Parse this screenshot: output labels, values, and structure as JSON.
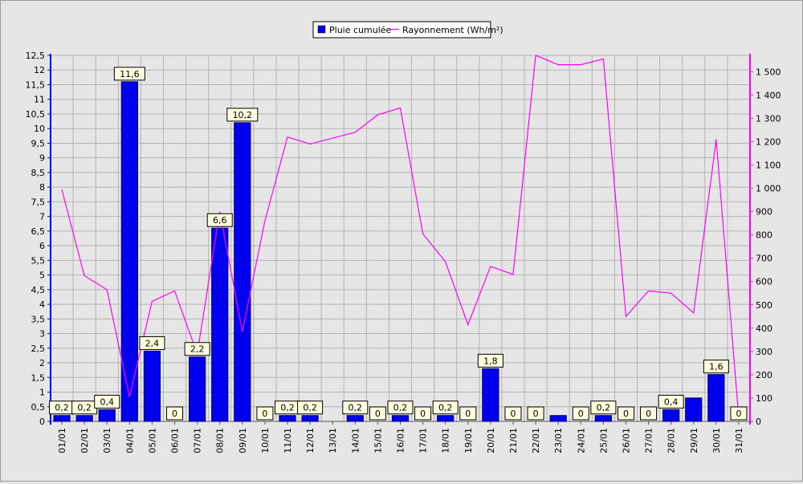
{
  "chart_data": {
    "type": "bar",
    "title": "",
    "categories": [
      "01/01",
      "02/01",
      "03/01",
      "04/01",
      "05/01",
      "06/01",
      "07/01",
      "08/01",
      "09/01",
      "10/01",
      "11/01",
      "12/01",
      "13/01",
      "14/01",
      "15/01",
      "16/01",
      "17/01",
      "18/01",
      "19/01",
      "20/01",
      "21/01",
      "22/01",
      "23/01",
      "24/01",
      "25/01",
      "26/01",
      "27/01",
      "28/01",
      "29/01",
      "30/01",
      "31/01"
    ],
    "series": [
      {
        "name": "Pluie cumulée",
        "type": "bar",
        "axis": "left",
        "color": "#0000ee",
        "values": [
          0.2,
          0.2,
          0.4,
          11.6,
          2.4,
          0,
          2.2,
          6.6,
          10.2,
          0,
          0.2,
          0.2,
          0,
          0.2,
          0,
          0.2,
          0,
          0.2,
          0,
          1.8,
          0,
          0,
          0.2,
          0,
          0.2,
          0,
          0,
          0.4,
          0.8,
          1.6,
          0
        ],
        "labels": [
          "0,2",
          "0,2",
          "0,4",
          "11,6",
          "2,4",
          "0",
          "2,2",
          "6,6",
          "10,2",
          "0",
          "0,2",
          "0,2",
          null,
          "0,2",
          "0",
          "0,2",
          "0",
          "0,2",
          "0",
          "1,8",
          "0",
          "0",
          null,
          "0",
          "0,2",
          "0",
          "0",
          "0,4",
          null,
          "1,6",
          "0"
        ]
      },
      {
        "name": "Rayonnement (Wh/m²)",
        "type": "line",
        "axis": "right",
        "color": "#ff00ff",
        "values": [
          995,
          625,
          565,
          105,
          515,
          560,
          290,
          900,
          385,
          860,
          1220,
          1190,
          1215,
          1240,
          1315,
          1345,
          805,
          685,
          415,
          665,
          630,
          1570,
          1530,
          1530,
          1555,
          450,
          560,
          550,
          465,
          1210,
          15
        ]
      }
    ],
    "y_left": {
      "min": 0,
      "max": 12.5,
      "step": 0.5,
      "ticks": [
        "0",
        "0,5",
        "1",
        "1,5",
        "2",
        "2,5",
        "3",
        "3,5",
        "4",
        "4,5",
        "5",
        "5,5",
        "6",
        "6,5",
        "7",
        "7,5",
        "8",
        "8,5",
        "9",
        "9,5",
        "10",
        "10,5",
        "11",
        "11,5",
        "12",
        "12,5"
      ]
    },
    "y_right": {
      "min": 0,
      "max": 1570,
      "step": 100,
      "ticks": [
        "0",
        "100",
        "200",
        "300",
        "400",
        "500",
        "600",
        "700",
        "800",
        "900",
        "1 000",
        "1 100",
        "1 200",
        "1 300",
        "1 400",
        "1 500"
      ]
    },
    "grid": true,
    "legend_position": "top-center"
  },
  "legend": {
    "bar_label": "Pluie cumulée",
    "line_label": "Rayonnement (Wh/m²)"
  }
}
